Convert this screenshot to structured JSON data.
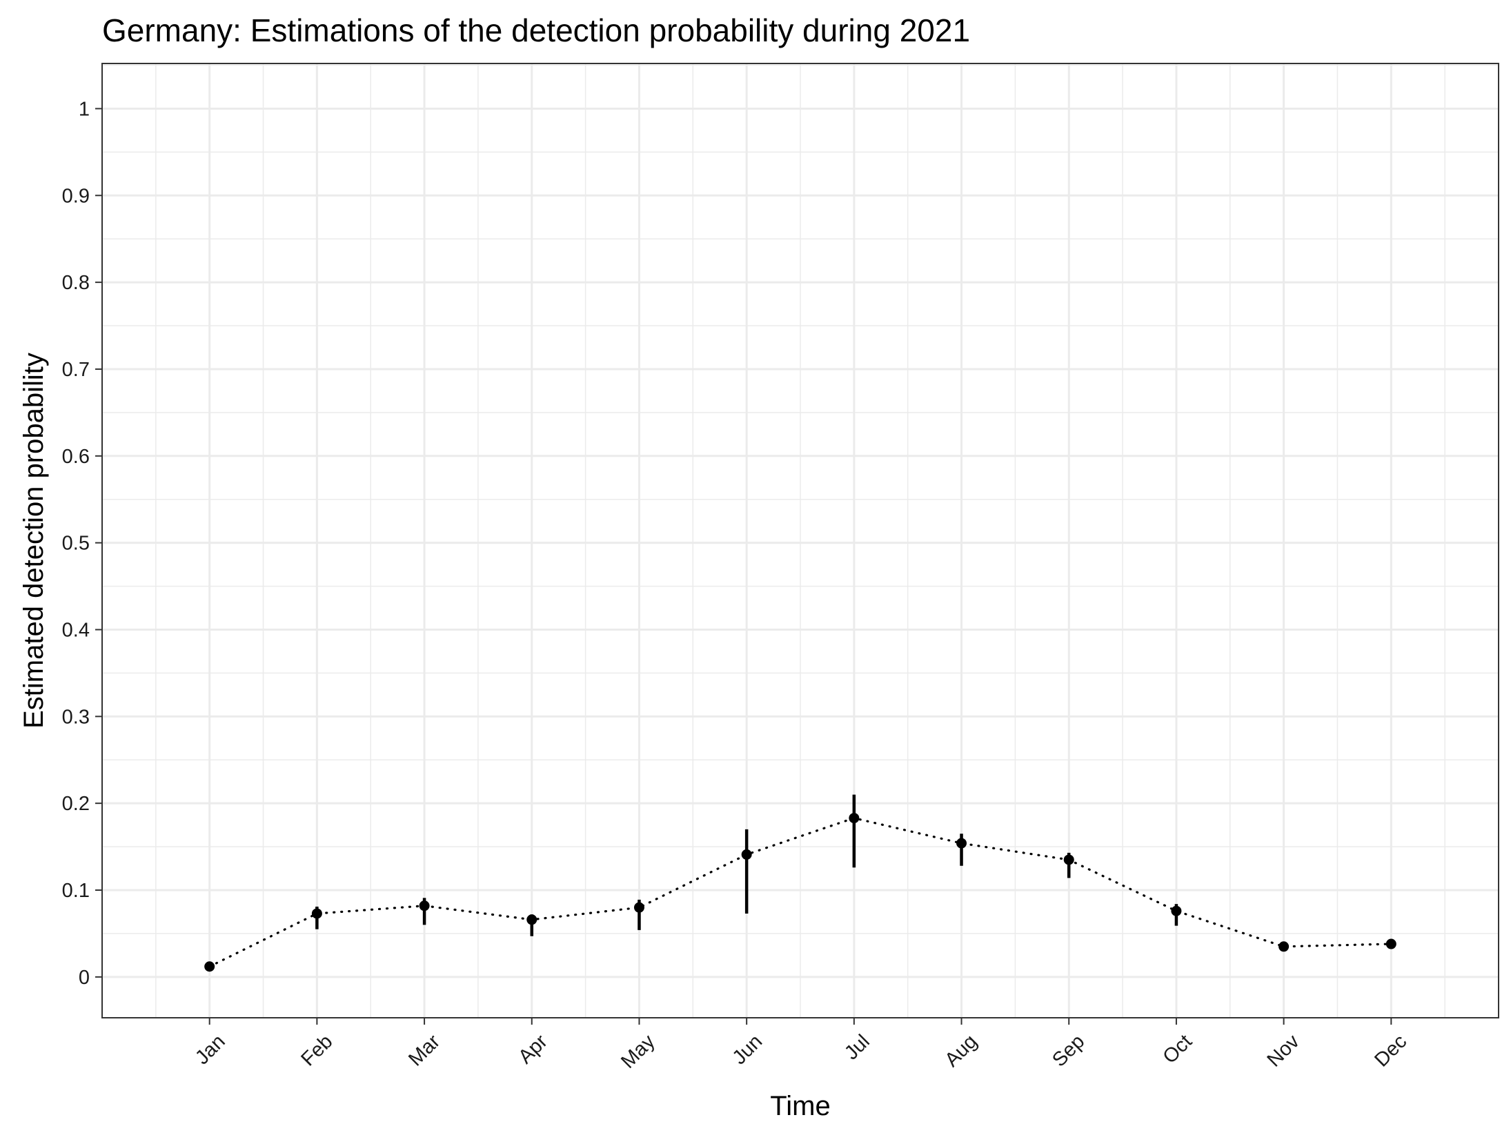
{
  "chart_data": {
    "type": "scatter",
    "title": "Germany: Estimations of the detection probability during 2021",
    "xlabel": "Time",
    "ylabel": "Estimated detection probability",
    "categories": [
      "Jan",
      "Feb",
      "Mar",
      "Apr",
      "May",
      "Jun",
      "Jul",
      "Aug",
      "Sep",
      "Oct",
      "Nov",
      "Dec"
    ],
    "series": [
      {
        "values": [
          0.012,
          0.073,
          0.082,
          0.066,
          0.08,
          0.141,
          0.183,
          0.154,
          0.135,
          0.076,
          0.035,
          0.038
        ],
        "lower": [
          0.011,
          0.055,
          0.06,
          0.047,
          0.054,
          0.073,
          0.126,
          0.128,
          0.114,
          0.059,
          0.033,
          0.036
        ],
        "upper": [
          0.014,
          0.081,
          0.091,
          0.072,
          0.089,
          0.17,
          0.21,
          0.165,
          0.143,
          0.084,
          0.037,
          0.04
        ]
      }
    ],
    "yticks": [
      "0",
      "0.1",
      "0.2",
      "0.3",
      "0.4",
      "0.5",
      "0.6",
      "0.7",
      "0.8",
      "0.9",
      "1"
    ],
    "ylim": [
      -0.047,
      1.052
    ],
    "grid": true,
    "line_style": "dotted",
    "error_bars": true,
    "legend": "none",
    "theme": "bw",
    "colors": {
      "points": "#000000",
      "grid": "#ebebeb",
      "border": "#333333",
      "background": "#ffffff"
    }
  }
}
